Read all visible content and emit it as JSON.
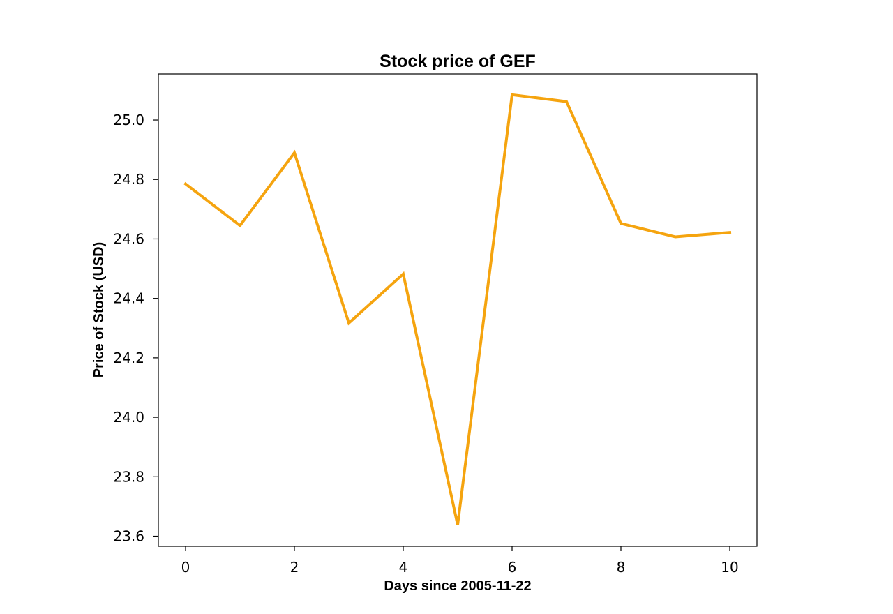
{
  "chart_data": {
    "type": "line",
    "title": "Stock price of GEF",
    "xlabel": "Days since 2005-11-22",
    "ylabel": "Price of Stock (USD)",
    "x": [
      0,
      1,
      2,
      3,
      4,
      5,
      6,
      7,
      8,
      9,
      10
    ],
    "xticks": [
      0,
      2,
      4,
      6,
      8,
      10
    ],
    "xtick_labels": [
      "0",
      "2",
      "4",
      "6",
      "8",
      "10"
    ],
    "yticks": [
      23.6,
      23.8,
      24.0,
      24.2,
      24.4,
      24.6,
      24.8,
      25.0
    ],
    "ytick_labels": [
      "23.6",
      "23.8",
      "24.0",
      "24.2",
      "24.4",
      "24.6",
      "24.8",
      "25.0"
    ],
    "xlim": [
      -0.5,
      10.5
    ],
    "ylim": [
      23.566,
      25.155
    ],
    "grid": false,
    "series": [
      {
        "color": "#f5a40f",
        "values": [
          24.785,
          24.645,
          24.89,
          24.317,
          24.482,
          23.638,
          25.085,
          25.062,
          24.652,
          24.607,
          24.622
        ]
      }
    ]
  }
}
